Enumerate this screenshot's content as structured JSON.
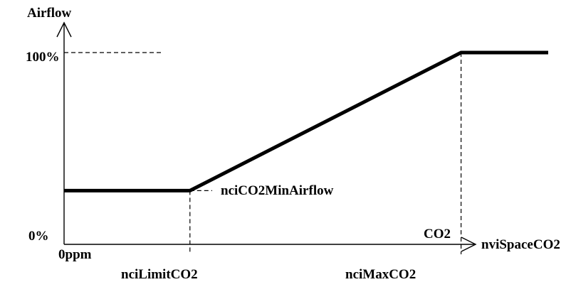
{
  "chart_data": {
    "type": "line",
    "title": "",
    "xlabel": "CO2",
    "xlabel_secondary": "nviSpaceCO2",
    "ylabel": "Airflow",
    "x_ticks": [
      "0ppm",
      "nciLimitCO2",
      "nciMaxCO2"
    ],
    "y_ticks": [
      "0%",
      "100%"
    ],
    "annotations": [
      "nciCO2MinAirflow"
    ],
    "xlim": [
      0,
      1
    ],
    "ylim": [
      0,
      100
    ],
    "grid": false,
    "series": [
      {
        "x": [
          0,
          0.26,
          0.82,
          1.0
        ],
        "y": [
          28,
          28,
          100,
          100
        ]
      }
    ]
  }
}
